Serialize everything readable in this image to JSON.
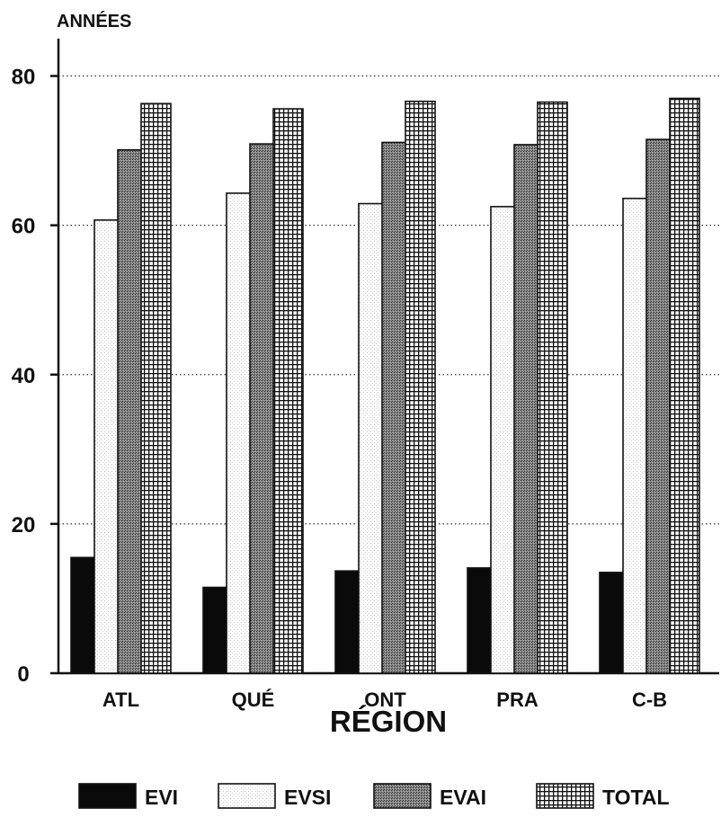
{
  "chart_data": {
    "type": "bar",
    "ylabel": "ANNÉES",
    "xlabel": "RÉGION",
    "categories": [
      "ATL",
      "QUÉ",
      "ONT",
      "PRA",
      "C-B"
    ],
    "ylim": [
      0,
      85
    ],
    "yticks": [
      0,
      20,
      40,
      60,
      80
    ],
    "grid": true,
    "legend_position": "bottom",
    "series": [
      {
        "name": "EVI",
        "pattern": "solid-black",
        "values": [
          15.5,
          11.5,
          13.7,
          14.1,
          13.5
        ]
      },
      {
        "name": "EVSI",
        "pattern": "white-stipple",
        "values": [
          60.7,
          64.3,
          62.9,
          62.5,
          63.6
        ]
      },
      {
        "name": "EVAI",
        "pattern": "dark-stipple",
        "values": [
          70.1,
          70.9,
          71.1,
          70.8,
          71.5
        ]
      },
      {
        "name": "TOTAL",
        "pattern": "grid-hatch",
        "values": [
          76.3,
          75.6,
          76.6,
          76.5,
          77.0
        ]
      }
    ]
  }
}
